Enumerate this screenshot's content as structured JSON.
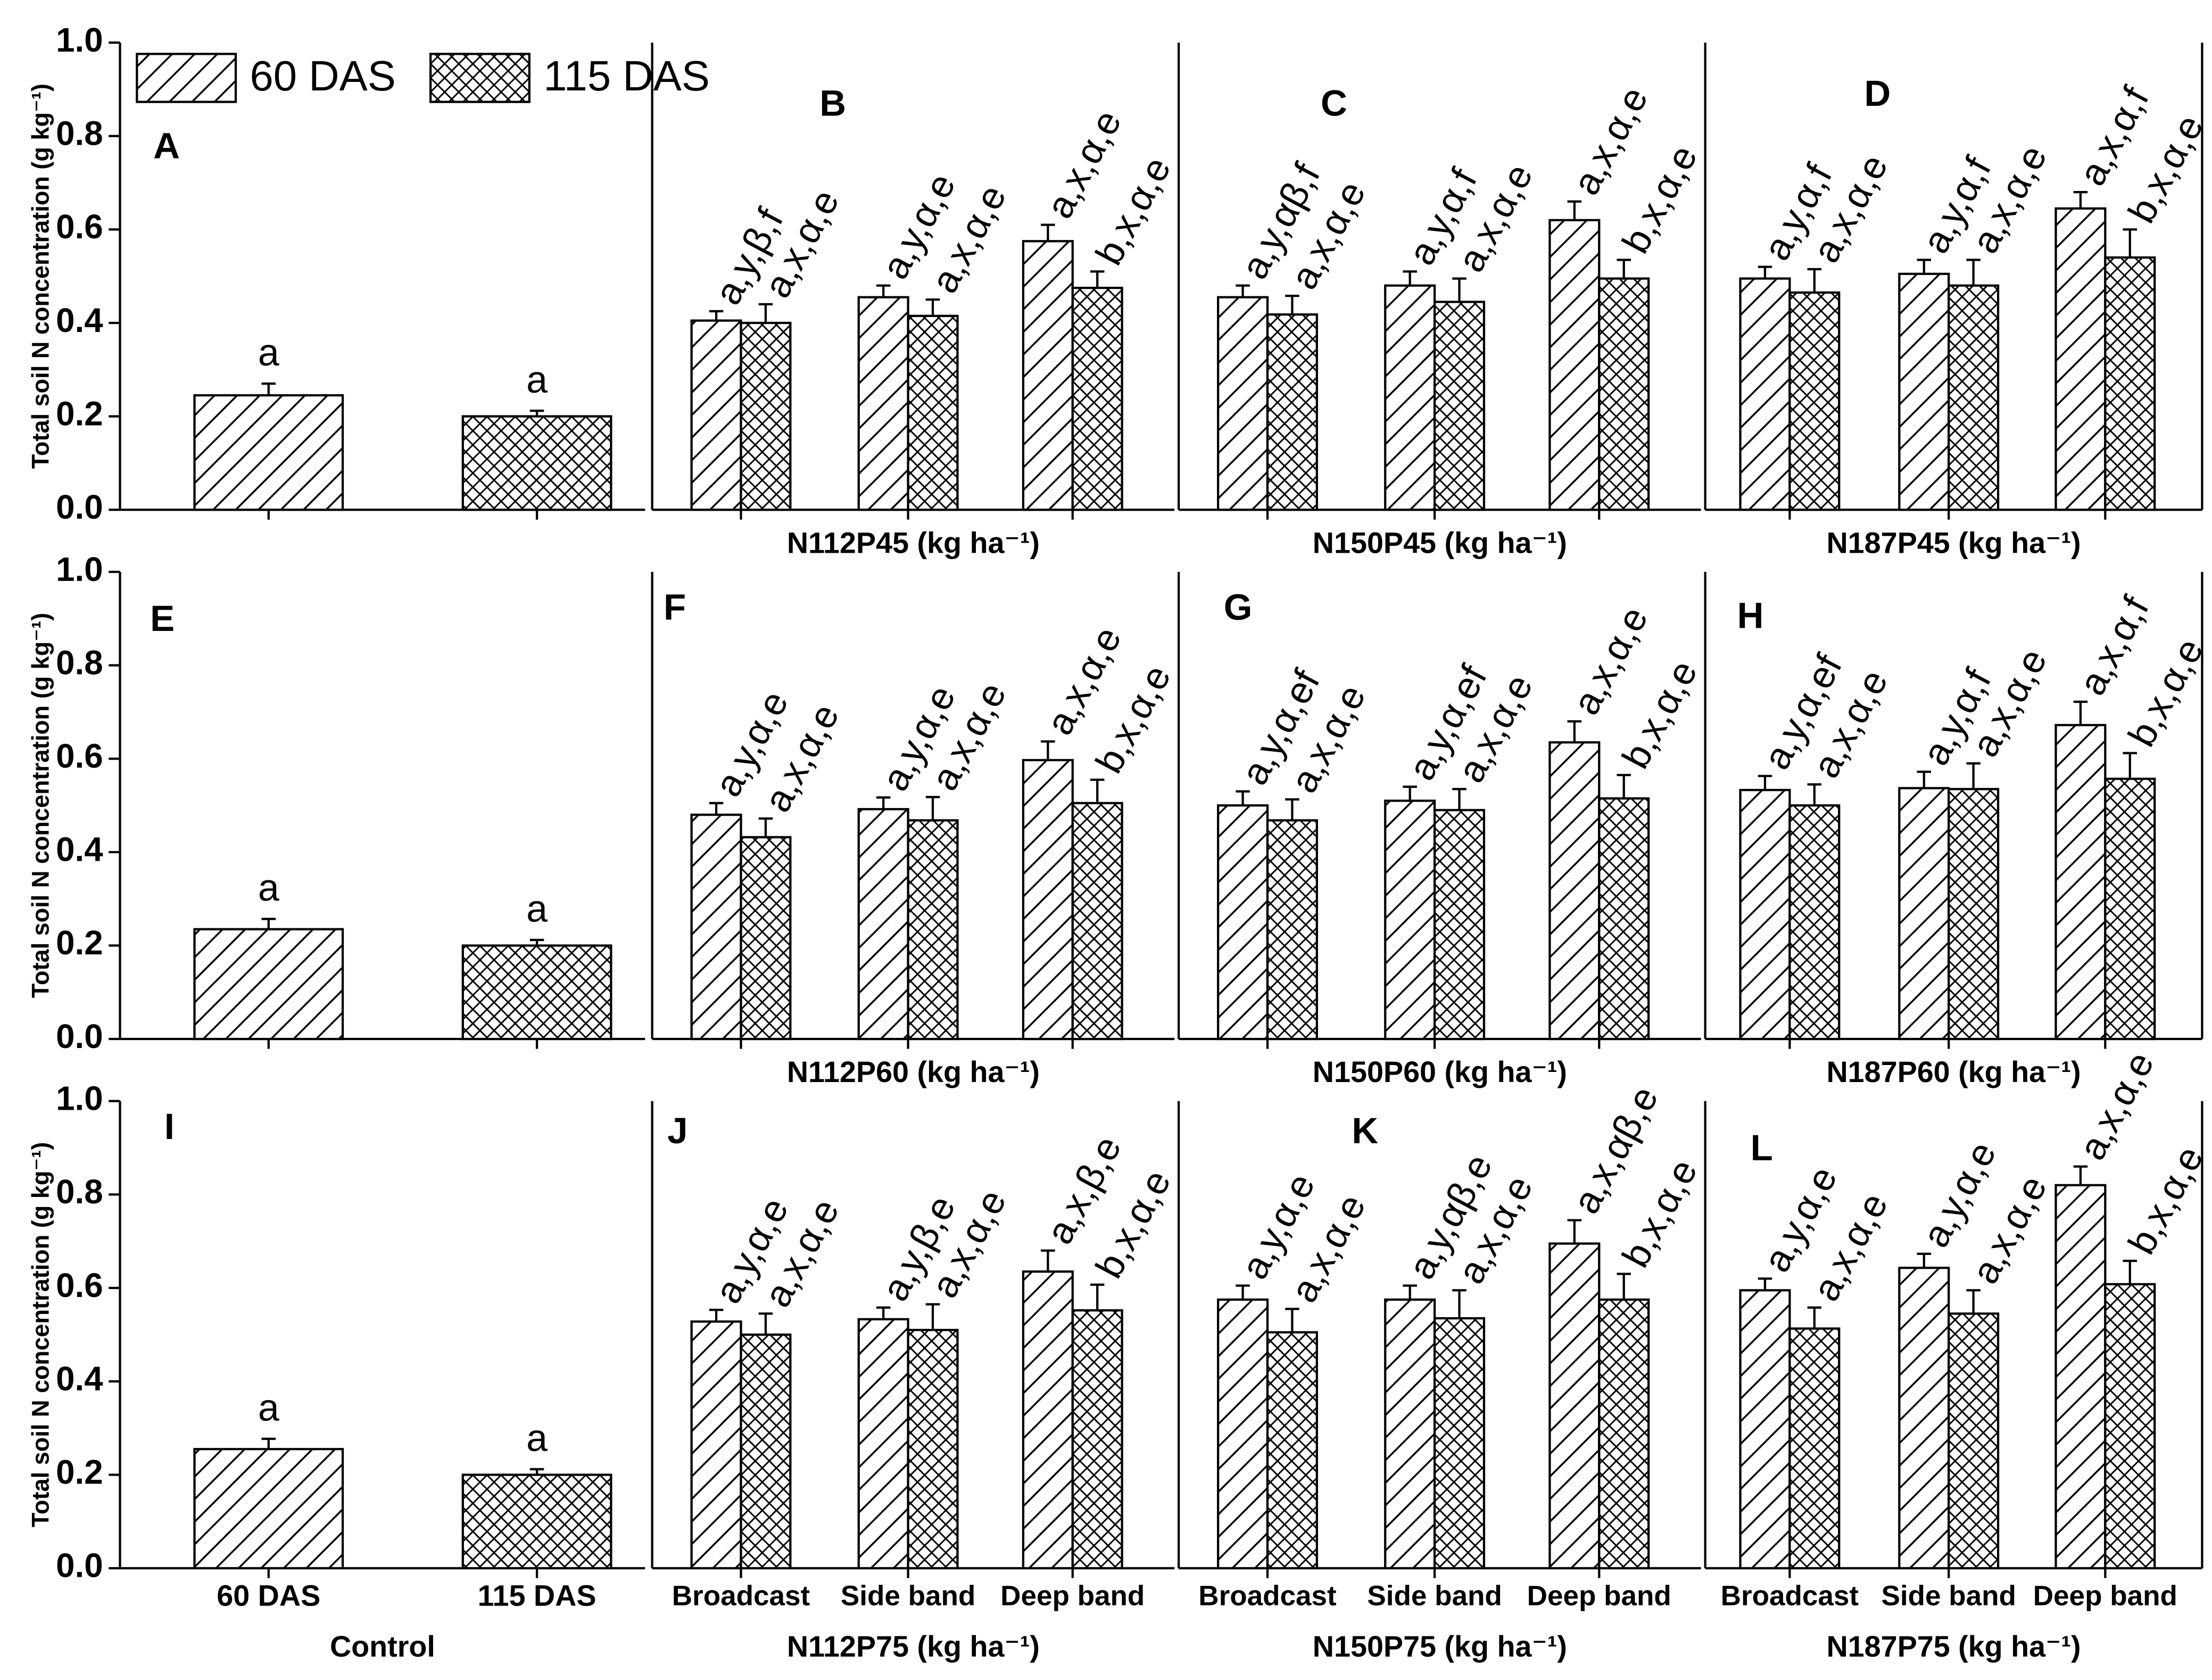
{
  "chart_data": {
    "type": "bar",
    "legend": [
      {
        "name": "60 DAS",
        "pattern": "diagonal"
      },
      {
        "name": "115 DAS",
        "pattern": "crosshatch"
      }
    ],
    "panels": [
      {
        "type": "control",
        "letter": "A",
        "ylabel": "Total soil N concentration (g kg⁻¹)",
        "ylim": [
          0,
          1
        ],
        "yticks": [
          {
            "value": 0,
            "label": "0.0"
          },
          0.2,
          0.4,
          0.6,
          0.8,
          {
            "value": 1,
            "label": "1.0"
          }
        ],
        "patterns": [
          "diagonal",
          "crosshatch"
        ],
        "values": [
          0.245,
          0.2
        ],
        "errors": [
          0.025,
          0.012
        ],
        "annotations": [
          "a",
          "a"
        ]
      },
      {
        "type": "grouped",
        "letter": "B",
        "xlabel": "N112P45 (kg ha⁻¹)",
        "ylim": [
          0,
          1
        ],
        "series": [
          {
            "pattern": "diagonal",
            "values": [
              0.405,
              0.455,
              0.575
            ],
            "errors": [
              0.02,
              0.025,
              0.035
            ],
            "annotations": [
              "a,y,β,f",
              "a,y,α,e",
              "a,x,α,e"
            ]
          },
          {
            "pattern": "crosshatch",
            "values": [
              0.4,
              0.415,
              0.475
            ],
            "errors": [
              0.04,
              0.035,
              0.035
            ],
            "annotations": [
              "a,x,α,e",
              "a,x,α,e",
              "b,x,α,e"
            ]
          }
        ]
      },
      {
        "type": "grouped",
        "letter": "C",
        "xlabel": "N150P45 (kg ha⁻¹)",
        "ylim": [
          0,
          1
        ],
        "series": [
          {
            "pattern": "diagonal",
            "values": [
              0.455,
              0.48,
              0.62
            ],
            "errors": [
              0.025,
              0.03,
              0.04
            ],
            "annotations": [
              "a,y,αβ,f",
              "a,y,α,f",
              "a,x,α,e"
            ]
          },
          {
            "pattern": "crosshatch",
            "values": [
              0.418,
              0.445,
              0.495
            ],
            "errors": [
              0.04,
              0.05,
              0.04
            ],
            "annotations": [
              "a,x,α,e",
              "a,x,α,e",
              "b,x,α,e"
            ]
          }
        ]
      },
      {
        "type": "grouped",
        "letter": "D",
        "xlabel": "N187P45 (kg ha⁻¹)",
        "ylim": [
          0,
          1
        ],
        "series": [
          {
            "pattern": "diagonal",
            "values": [
              0.495,
              0.505,
              0.645
            ],
            "errors": [
              0.025,
              0.03,
              0.035
            ],
            "annotations": [
              "a,y,α,f",
              "a,y,α,f",
              "a,x,α,f"
            ]
          },
          {
            "pattern": "crosshatch",
            "values": [
              0.465,
              0.48,
              0.54
            ],
            "errors": [
              0.05,
              0.055,
              0.06
            ],
            "annotations": [
              "a,x,α,e",
              "a,x,α,e",
              "b,x,α,e"
            ]
          }
        ]
      },
      {
        "type": "control",
        "letter": "E",
        "ylabel": "Total soil N concentration (g kg⁻¹)",
        "ylim": [
          0,
          1
        ],
        "yticks": [
          {
            "value": 0,
            "label": "0.0"
          },
          0.2,
          0.4,
          0.6,
          0.8,
          {
            "value": 1,
            "label": "1.0"
          }
        ],
        "patterns": [
          "diagonal",
          "crosshatch"
        ],
        "values": [
          0.235,
          0.2
        ],
        "errors": [
          0.022,
          0.012
        ],
        "annotations": [
          "a",
          "a"
        ]
      },
      {
        "type": "grouped",
        "letter": "F",
        "xlabel": "N112P60 (kg ha⁻¹)",
        "ylim": [
          0,
          1
        ],
        "series": [
          {
            "pattern": "diagonal",
            "values": [
              0.48,
              0.492,
              0.597
            ],
            "errors": [
              0.025,
              0.025,
              0.04
            ],
            "annotations": [
              "a,y,α,e",
              "a,y,α,e",
              "a,x,α,e"
            ]
          },
          {
            "pattern": "crosshatch",
            "values": [
              0.432,
              0.468,
              0.505
            ],
            "errors": [
              0.04,
              0.05,
              0.05
            ],
            "annotations": [
              "a,x,α,e",
              "a,x,α,e",
              "b,x,α,e"
            ]
          }
        ]
      },
      {
        "type": "grouped",
        "letter": "G",
        "xlabel": "N150P60 (kg ha⁻¹)",
        "ylim": [
          0,
          1
        ],
        "series": [
          {
            "pattern": "diagonal",
            "values": [
              0.5,
              0.51,
              0.635
            ],
            "errors": [
              0.03,
              0.03,
              0.045
            ],
            "annotations": [
              "a,y,α,ef",
              "a,y,α,ef",
              "a,x,α,e"
            ]
          },
          {
            "pattern": "crosshatch",
            "values": [
              0.468,
              0.49,
              0.515
            ],
            "errors": [
              0.045,
              0.045,
              0.05
            ],
            "annotations": [
              "a,x,α,e",
              "a,x,α,e",
              "b,x,α,e"
            ]
          }
        ]
      },
      {
        "type": "grouped",
        "letter": "H",
        "xlabel": "N187P60 (kg ha⁻¹)",
        "ylim": [
          0,
          1
        ],
        "series": [
          {
            "pattern": "diagonal",
            "values": [
              0.533,
              0.537,
              0.672
            ],
            "errors": [
              0.03,
              0.035,
              0.05
            ],
            "annotations": [
              "a,y,α,ef",
              "a,y,α,f",
              "a,x,α,f"
            ]
          },
          {
            "pattern": "crosshatch",
            "values": [
              0.5,
              0.535,
              0.557
            ],
            "errors": [
              0.045,
              0.055,
              0.055
            ],
            "annotations": [
              "a,x,α,e",
              "a,x,α,e",
              "b,x,α,e"
            ]
          }
        ]
      },
      {
        "type": "control",
        "letter": "I",
        "ylabel": "Total soil N concentration (g kg⁻¹)",
        "xlabel": "Control",
        "categories": [
          "60 DAS",
          "115 DAS"
        ],
        "ylim": [
          0,
          1
        ],
        "yticks": [
          {
            "value": 0,
            "label": "0.0"
          },
          0.2,
          0.4,
          0.6,
          0.8,
          {
            "value": 1,
            "label": "1.0"
          }
        ],
        "patterns": [
          "diagonal",
          "crosshatch"
        ],
        "values": [
          0.255,
          0.2
        ],
        "errors": [
          0.022,
          0.012
        ],
        "annotations": [
          "a",
          "a"
        ]
      },
      {
        "type": "grouped",
        "letter": "J",
        "xlabel": "N112P75 (kg ha⁻¹)",
        "categories": [
          "Broadcast",
          "Side band",
          "Deep band"
        ],
        "ylim": [
          0,
          1
        ],
        "series": [
          {
            "pattern": "diagonal",
            "values": [
              0.528,
              0.533,
              0.635
            ],
            "errors": [
              0.025,
              0.025,
              0.045
            ],
            "annotations": [
              "a,y,α,e",
              "a,y,β,e",
              "a,x,β,e"
            ]
          },
          {
            "pattern": "crosshatch",
            "values": [
              0.5,
              0.51,
              0.552
            ],
            "errors": [
              0.045,
              0.055,
              0.055
            ],
            "annotations": [
              "a,x,α,e",
              "a,x,α,e",
              "b,x,α,e"
            ]
          }
        ]
      },
      {
        "type": "grouped",
        "letter": "K",
        "xlabel": "N150P75 (kg ha⁻¹)",
        "categories": [
          "Broadcast",
          "Side band",
          "Deep band"
        ],
        "ylim": [
          0,
          1
        ],
        "series": [
          {
            "pattern": "diagonal",
            "values": [
              0.575,
              0.575,
              0.695
            ],
            "errors": [
              0.03,
              0.03,
              0.05
            ],
            "annotations": [
              "a,y,α,e",
              "a,y,αβ,e",
              "a,x,αβ,e"
            ]
          },
          {
            "pattern": "crosshatch",
            "values": [
              0.505,
              0.535,
              0.575
            ],
            "errors": [
              0.05,
              0.06,
              0.055
            ],
            "annotations": [
              "a,x,α,e",
              "a,x,α,e",
              "b,x,α,e"
            ]
          }
        ]
      },
      {
        "type": "grouped",
        "letter": "L",
        "xlabel": "N187P75 (kg ha⁻¹)",
        "categories": [
          "Broadcast",
          "Side band",
          "Deep band"
        ],
        "ylim": [
          0,
          1
        ],
        "series": [
          {
            "pattern": "diagonal",
            "values": [
              0.595,
              0.643,
              0.82
            ],
            "errors": [
              0.025,
              0.03,
              0.04
            ],
            "annotations": [
              "a,y,α,e",
              "a,y,α,e",
              "a,x,α,e"
            ]
          },
          {
            "pattern": "crosshatch",
            "values": [
              0.513,
              0.545,
              0.608
            ],
            "errors": [
              0.045,
              0.05,
              0.05
            ],
            "annotations": [
              "a,x,α,e",
              "a,x,α,e",
              "b,x,α,e"
            ]
          }
        ]
      }
    ]
  }
}
